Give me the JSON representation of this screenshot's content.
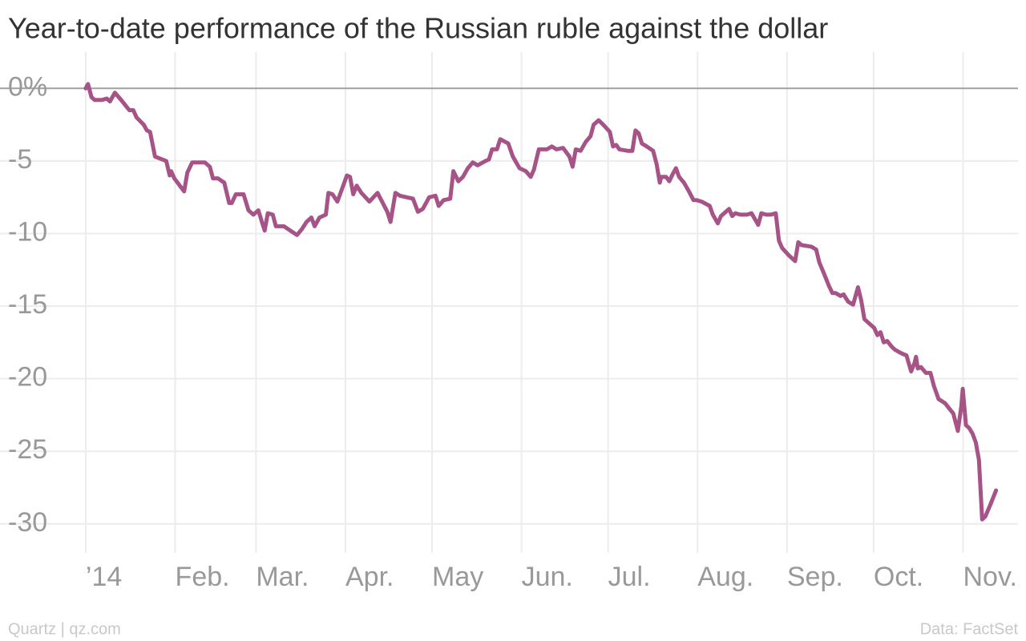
{
  "chart_data": {
    "type": "line",
    "title": "Year-to-date performance of the Russian ruble against the dollar",
    "credit": "Quartz | qz.com",
    "source": "Data: FactSet",
    "color": "#a65387",
    "grid": true,
    "xlim": [
      -29.7,
      325.8
    ],
    "ylim": [
      -32,
      2.5
    ],
    "xticks": [
      {
        "value": 0,
        "label": "’14"
      },
      {
        "value": 31,
        "label": "Feb."
      },
      {
        "value": 59,
        "label": "Mar."
      },
      {
        "value": 90,
        "label": "Apr."
      },
      {
        "value": 120,
        "label": "May"
      },
      {
        "value": 151,
        "label": "Jun."
      },
      {
        "value": 181,
        "label": "Jul."
      },
      {
        "value": 212,
        "label": "Aug."
      },
      {
        "value": 243,
        "label": "Sep."
      },
      {
        "value": 273,
        "label": "Oct."
      },
      {
        "value": 304,
        "label": "Nov."
      }
    ],
    "yticks": [
      {
        "value": 0,
        "label": "0%"
      },
      -5,
      -10,
      -15,
      -20,
      -25,
      -30
    ],
    "x": [
      0,
      0.8,
      2.0,
      3.1,
      5.6,
      7.3,
      8.4,
      10.1,
      12.3,
      15.1,
      16.5,
      17.6,
      20.1,
      21.2,
      22.3,
      22.9,
      24.0,
      27.9,
      29.1,
      29.6,
      30.7,
      34.1,
      35.2,
      36.9,
      38.5,
      41.3,
      43.0,
      44.1,
      45.8,
      48.0,
      49.7,
      50.6,
      52.0,
      54.7,
      56.4,
      58.1,
      59.8,
      61.2,
      62.0,
      63.1,
      64.8,
      65.9,
      68.7,
      70.9,
      73.2,
      74.9,
      76.5,
      78.2,
      79.3,
      81.0,
      83.2,
      84.1,
      85.5,
      87.2,
      88.3,
      90.5,
      91.6,
      92.7,
      93.9,
      95.5,
      98.3,
      101.1,
      104.5,
      105.6,
      107.3,
      108.9,
      111.2,
      113.4,
      115.1,
      116.8,
      119.0,
      121.2,
      122.3,
      124.0,
      126.3,
      127.4,
      129.1,
      130.7,
      132.4,
      134.1,
      135.8,
      138.5,
      139.7,
      140.8,
      142.5,
      143.6,
      146.4,
      148.0,
      150.3,
      152.5,
      154.2,
      155.3,
      157.0,
      159.8,
      161.5,
      163.1,
      165.4,
      167.6,
      168.7,
      169.8,
      171.5,
      173.2,
      174.9,
      176.0,
      177.7,
      179.3,
      181.6,
      182.7,
      183.8,
      184.9,
      187.7,
      189.4,
      190.5,
      191.6,
      192.7,
      194.4,
      196.6,
      197.8,
      198.9,
      199.4,
      201.1,
      202.2,
      203.4,
      204.5,
      205.6,
      207.3,
      209.0,
      210.6,
      211.7,
      213.4,
      216.2,
      217.3,
      219.0,
      220.1,
      222.9,
      224.0,
      225.1,
      226.8,
      229.1,
      230.7,
      233.0,
      234.1,
      235.8,
      237.4,
      239.1,
      240.2,
      241.3,
      243.6,
      245.8,
      246.9,
      248.0,
      251.4,
      253.1,
      254.2,
      255.9,
      257.5,
      258.7,
      259.8,
      261.5,
      262.6,
      264.2,
      265.9,
      267.6,
      268.7,
      269.8,
      271.5,
      273.2,
      274.3,
      275.4,
      276.5,
      277.7,
      279.3,
      280.4,
      282.1,
      283.2,
      284.4,
      286.0,
      287.2,
      287.7,
      288.3,
      289.4,
      291.1,
      292.7,
      293.9,
      295.5,
      297.8,
      299.4,
      300.6,
      302.2,
      303.4,
      303.9,
      305.0,
      306.1,
      307.3,
      308.4,
      309.5,
      310.6,
      311.7,
      313.4,
      315.4
    ],
    "values": [
      0,
      0.3,
      -0.6,
      -0.8,
      -0.8,
      -0.7,
      -0.9,
      -0.3,
      -0.8,
      -1.5,
      -1.5,
      -2.0,
      -2.5,
      -2.9,
      -3.0,
      -3.6,
      -4.7,
      -5.0,
      -6.0,
      -5.7,
      -6.2,
      -7.1,
      -5.8,
      -5.1,
      -5.1,
      -5.1,
      -5.4,
      -6.2,
      -6.2,
      -6.5,
      -7.9,
      -7.9,
      -7.3,
      -7.3,
      -8.4,
      -8.7,
      -8.4,
      -9.3,
      -9.8,
      -8.6,
      -8.7,
      -9.5,
      -9.5,
      -9.8,
      -10.1,
      -9.7,
      -9.2,
      -8.9,
      -9.5,
      -8.9,
      -8.7,
      -7.2,
      -7.3,
      -7.8,
      -7.2,
      -6.0,
      -6.1,
      -7.3,
      -6.7,
      -7.2,
      -7.8,
      -7.2,
      -8.5,
      -9.2,
      -7.2,
      -7.4,
      -7.5,
      -7.6,
      -8.5,
      -8.3,
      -7.5,
      -7.4,
      -8.1,
      -7.7,
      -7.6,
      -5.7,
      -6.4,
      -6.1,
      -5.5,
      -5.1,
      -5.3,
      -5.0,
      -4.9,
      -4.2,
      -4.2,
      -3.5,
      -3.8,
      -4.7,
      -5.5,
      -5.7,
      -6.1,
      -5.6,
      -4.2,
      -4.2,
      -4.0,
      -4.2,
      -4.1,
      -4.7,
      -5.4,
      -4.2,
      -4.3,
      -3.7,
      -3.3,
      -2.5,
      -2.2,
      -2.5,
      -3.0,
      -4.0,
      -3.9,
      -4.2,
      -4.3,
      -4.3,
      -2.9,
      -3.1,
      -3.8,
      -4.0,
      -4.3,
      -5.2,
      -6.5,
      -6.1,
      -6.1,
      -6.4,
      -5.9,
      -5.5,
      -6.1,
      -6.5,
      -7.1,
      -7.7,
      -7.7,
      -7.8,
      -8.1,
      -8.7,
      -9.3,
      -8.8,
      -8.3,
      -8.8,
      -8.6,
      -8.7,
      -8.7,
      -8.6,
      -9.4,
      -8.6,
      -8.7,
      -8.7,
      -8.6,
      -10.5,
      -11.0,
      -11.5,
      -11.9,
      -10.6,
      -10.8,
      -10.9,
      -11.1,
      -12.0,
      -12.8,
      -13.6,
      -14.1,
      -14.1,
      -14.3,
      -14.2,
      -14.7,
      -14.9,
      -13.7,
      -14.6,
      -15.9,
      -16.2,
      -16.5,
      -17.0,
      -16.8,
      -17.5,
      -17.4,
      -17.8,
      -18.0,
      -18.2,
      -18.3,
      -18.4,
      -19.5,
      -18.9,
      -18.5,
      -19.3,
      -19.2,
      -19.6,
      -19.6,
      -20.5,
      -21.4,
      -21.7,
      -22.1,
      -22.4,
      -23.6,
      -21.9,
      -20.7,
      -23.2,
      -23.4,
      -23.8,
      -24.4,
      -25.6,
      -29.7,
      -29.5,
      -28.7,
      -27.7
    ]
  }
}
